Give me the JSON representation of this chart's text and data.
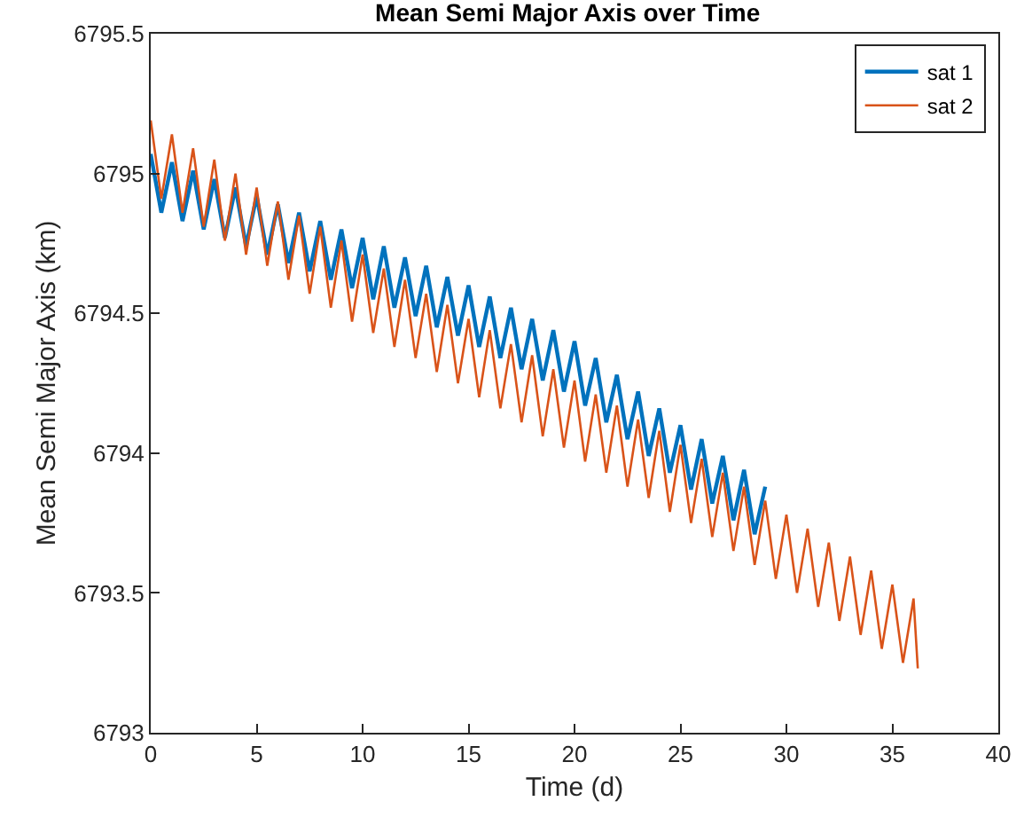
{
  "chart_data": {
    "type": "line",
    "title": "Mean Semi Major Axis over Time",
    "xlabel": "Time (d)",
    "ylabel": "Mean Semi Major Axis (km)",
    "xlim": [
      0,
      40
    ],
    "xticks": [
      0,
      5,
      10,
      15,
      20,
      25,
      30,
      35,
      40
    ],
    "ylim": [
      6793,
      6795.5
    ],
    "yticks": [
      6793,
      6793.5,
      6794,
      6794.5,
      6795,
      6795.5
    ],
    "legend": "top right",
    "marker": "none",
    "line_style": "solid",
    "series": [
      {
        "name": "sat 1",
        "color": "#0072bd",
        "x": [
          0,
          0.5,
          1,
          1.5,
          2,
          2.5,
          3,
          3.5,
          4,
          4.5,
          5,
          5.5,
          6,
          6.5,
          7,
          7.5,
          8,
          8.5,
          9,
          9.5,
          10,
          10.5,
          11,
          11.5,
          12,
          12.5,
          13,
          13.5,
          14,
          14.5,
          15,
          15.5,
          16,
          16.5,
          17,
          17.5,
          18,
          18.5,
          19,
          19.5,
          20,
          20.5,
          21,
          21.5,
          22,
          22.5,
          23,
          23.5,
          24,
          24.5,
          25,
          25.5,
          26,
          26.5,
          27,
          27.5,
          28,
          28.5,
          29
        ],
        "values": [
          6795.07,
          6794.86,
          6795.04,
          6794.83,
          6795.01,
          6794.8,
          6794.98,
          6794.77,
          6794.95,
          6794.74,
          6794.92,
          6794.71,
          6794.89,
          6794.68,
          6794.86,
          6794.65,
          6794.83,
          6794.62,
          6794.8,
          6794.59,
          6794.77,
          6794.55,
          6794.74,
          6794.52,
          6794.7,
          6794.49,
          6794.67,
          6794.45,
          6794.63,
          6794.42,
          6794.6,
          6794.38,
          6794.56,
          6794.34,
          6794.52,
          6794.3,
          6794.48,
          6794.26,
          6794.44,
          6794.22,
          6794.4,
          6794.17,
          6794.34,
          6794.11,
          6794.28,
          6794.05,
          6794.22,
          6793.99,
          6794.16,
          6793.93,
          6794.1,
          6793.87,
          6794.05,
          6793.82,
          6793.99,
          6793.76,
          6793.94,
          6793.71,
          6793.88
        ]
      },
      {
        "name": "sat 2",
        "color": "#d95319",
        "x": [
          0,
          0.5,
          1,
          1.5,
          2,
          2.5,
          3,
          3.5,
          4,
          4.5,
          5,
          5.5,
          6,
          6.5,
          7,
          7.5,
          8,
          8.5,
          9,
          9.5,
          10,
          10.5,
          11,
          11.5,
          12,
          12.5,
          13,
          13.5,
          14,
          14.5,
          15,
          15.5,
          16,
          16.5,
          17,
          17.5,
          18,
          18.5,
          19,
          19.5,
          20,
          20.5,
          21,
          21.5,
          22,
          22.5,
          23,
          23.5,
          24,
          24.5,
          25,
          25.5,
          26,
          26.5,
          27,
          27.5,
          28,
          28.5,
          29,
          29.5,
          30,
          30.5,
          31,
          31.5,
          32,
          32.5,
          33,
          33.5,
          34,
          34.5,
          35,
          35.5,
          36,
          36.2
        ],
        "values": [
          6795.19,
          6794.91,
          6795.14,
          6794.86,
          6795.09,
          6794.81,
          6795.05,
          6794.76,
          6795.0,
          6794.71,
          6794.95,
          6794.67,
          6794.9,
          6794.62,
          6794.85,
          6794.57,
          6794.81,
          6794.52,
          6794.76,
          6794.47,
          6794.71,
          6794.43,
          6794.66,
          6794.38,
          6794.62,
          6794.34,
          6794.57,
          6794.29,
          6794.53,
          6794.25,
          6794.48,
          6794.2,
          6794.44,
          6794.16,
          6794.39,
          6794.11,
          6794.35,
          6794.06,
          6794.3,
          6794.02,
          6794.26,
          6793.97,
          6794.21,
          6793.93,
          6794.17,
          6793.88,
          6794.12,
          6793.84,
          6794.08,
          6793.79,
          6794.03,
          6793.75,
          6793.98,
          6793.7,
          6793.93,
          6793.65,
          6793.88,
          6793.6,
          6793.83,
          6793.55,
          6793.78,
          6793.5,
          6793.73,
          6793.45,
          6793.68,
          6793.4,
          6793.63,
          6793.35,
          6793.58,
          6793.3,
          6793.53,
          6793.25,
          6793.48,
          6793.23
        ]
      }
    ]
  }
}
